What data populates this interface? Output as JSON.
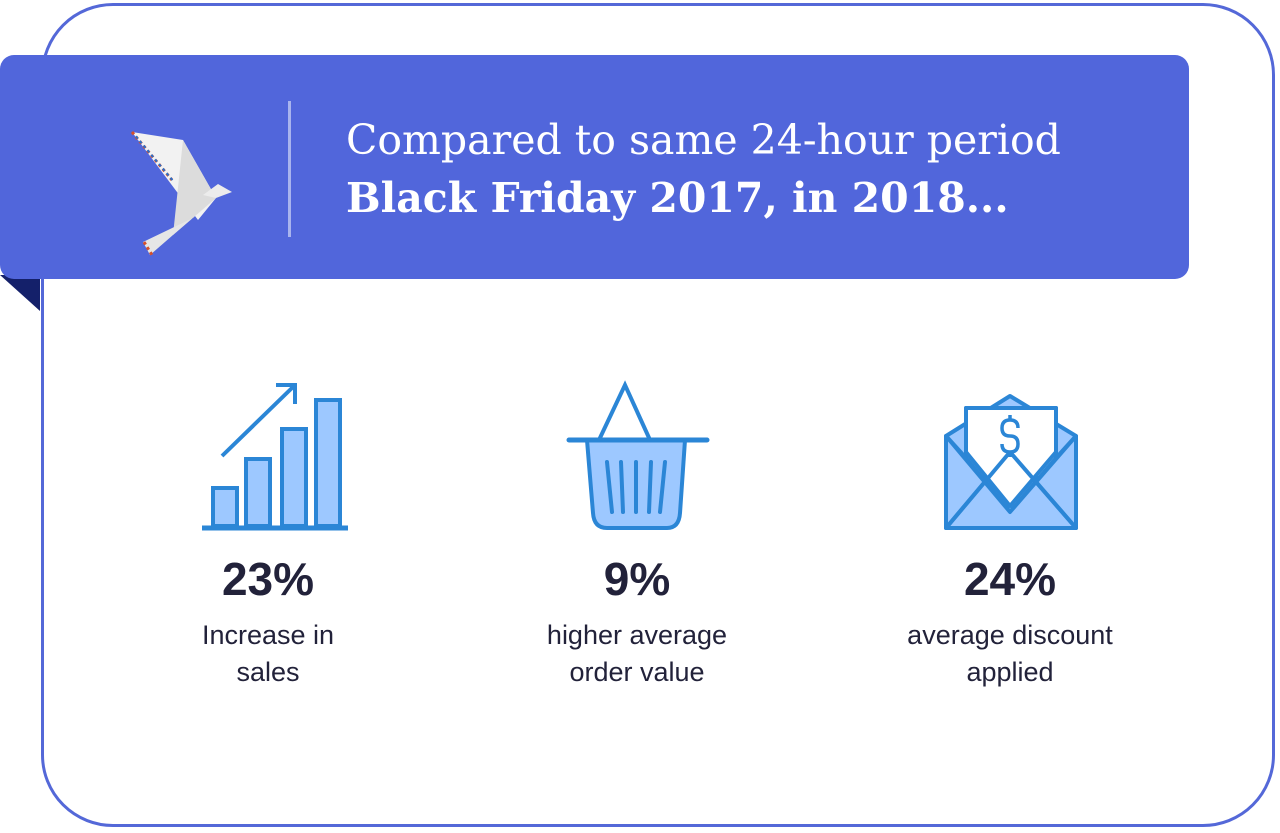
{
  "header": {
    "line1": "Compared to same 24-hour period",
    "line2": "Black Friday 2017, in 2018..."
  },
  "colors": {
    "banner": "#5166db",
    "border": "#5468d8",
    "icon_stroke": "#2b86d6",
    "icon_fill": "#9dc8ff",
    "text": "#22223a"
  },
  "stats": [
    {
      "icon": "bar-chart-growth-icon",
      "value": "23%",
      "label_line1": "Increase in",
      "label_line2": "sales"
    },
    {
      "icon": "shopping-basket-icon",
      "value": "9%",
      "label_line1": "higher average",
      "label_line2": "order value"
    },
    {
      "icon": "envelope-dollar-icon",
      "value": "24%",
      "label_line1": "average discount",
      "label_line2": "applied"
    }
  ]
}
